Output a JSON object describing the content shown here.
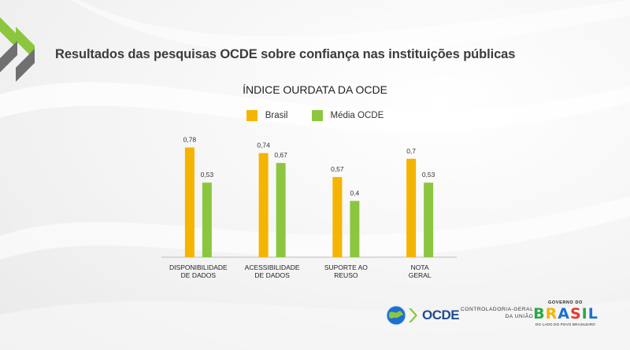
{
  "header": {
    "title": "Resultados das pesquisas OCDE sobre confiança nas instituições públicas"
  },
  "chart_data": {
    "type": "bar",
    "title": "ÍNDICE OURDATA DA OCDE",
    "categories": [
      "DISPONIBILIDADE\nDE DADOS",
      "ACESSIBILIDADE\nDE DADOS",
      "SUPORTE AO\nREUSO",
      "NOTA\nGERAL"
    ],
    "series": [
      {
        "name": "Brasil",
        "values": [
          0.78,
          0.74,
          0.57,
          0.7
        ],
        "labels": [
          "0,78",
          "0,74",
          "0,57",
          "0,7"
        ],
        "color": "#f5b400"
      },
      {
        "name": "Média OCDE",
        "values": [
          0.53,
          0.67,
          0.4,
          0.53
        ],
        "labels": [
          "0,53",
          "0,67",
          "0,4",
          "0,53"
        ],
        "color": "#8cc63f"
      }
    ],
    "ylim": [
      0,
      0.85
    ],
    "legend_position": "top-center",
    "grid": false
  },
  "footer": {
    "ocde_label": "OCDE",
    "cgu_line1": "CONTROLADORIA-GERAL",
    "cgu_line2": "DA UNIÃO",
    "gov_top": "GOVERNO DO",
    "gov_word": [
      "B",
      "R",
      "A",
      "S",
      "I",
      "L"
    ],
    "gov_colors": [
      "#2aa845",
      "#f5b400",
      "#1f6fd1",
      "#e23b2e",
      "#2aa845",
      "#1f6fd1"
    ],
    "gov_bottom": "DO LADO DO POVO BRASILEIRO"
  }
}
